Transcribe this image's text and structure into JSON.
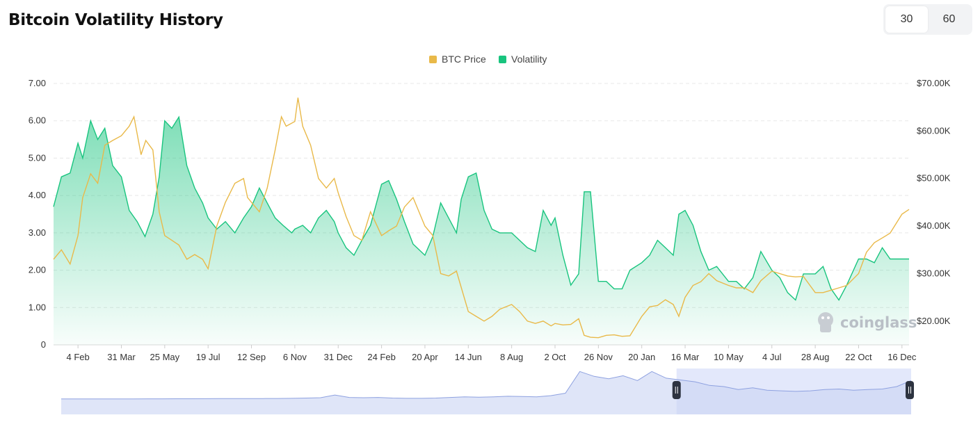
{
  "header": {
    "title": "Bitcoin Volatility History",
    "toggle_options": [
      "30",
      "60"
    ],
    "selected": "30"
  },
  "watermark": "coinglass",
  "colors": {
    "price": "#e9b949",
    "volatility": "#18c47e",
    "navigator_fill": "#e3e8fb",
    "navigator_line": "#8ea1e0",
    "handle": "#2d3340",
    "grid": "#e8e8e8"
  },
  "chart_data": {
    "type": "line",
    "legend": [
      "BTC Price",
      "Volatility"
    ],
    "legend_position": "top-center",
    "x_tick_labels": [
      "4 Feb",
      "31 Mar",
      "25 May",
      "19 Jul",
      "12 Sep",
      "6 Nov",
      "31 Dec",
      "24 Feb",
      "20 Apr",
      "14 Jun",
      "8 Aug",
      "2 Oct",
      "26 Nov",
      "20 Jan",
      "16 Mar",
      "10 May",
      "4 Jul",
      "28 Aug",
      "22 Oct",
      "16 Dec"
    ],
    "y_left_ticks": [
      "0",
      "1.00",
      "2.00",
      "3.00",
      "4.00",
      "5.00",
      "6.00",
      "7.00"
    ],
    "y_left_range": [
      0,
      7
    ],
    "y_right_ticks": [
      "$20.00K",
      "$30.00K",
      "$40.00K",
      "$50.00K",
      "$60.00K",
      "$70.00K"
    ],
    "y_right_range": [
      15000,
      70000
    ],
    "grid": "horizontal-dashed",
    "series": [
      {
        "name": "Volatility",
        "axis": "left",
        "type": "area",
        "points": [
          [
            "4 Jan",
            3.7
          ],
          [
            "14 Jan",
            4.5
          ],
          [
            "25 Jan",
            4.6
          ],
          [
            "4 Feb",
            5.4
          ],
          [
            "10 Feb",
            5.0
          ],
          [
            "20 Feb",
            6.0
          ],
          [
            "1 Mar",
            5.5
          ],
          [
            "10 Mar",
            5.8
          ],
          [
            "20 Mar",
            4.8
          ],
          [
            "31 Mar",
            4.5
          ],
          [
            "10 Apr",
            3.6
          ],
          [
            "20 Apr",
            3.3
          ],
          [
            "30 Apr",
            2.9
          ],
          [
            "10 May",
            3.5
          ],
          [
            "18 May",
            4.5
          ],
          [
            "25 May",
            6.0
          ],
          [
            "3 Jun",
            5.8
          ],
          [
            "12 Jun",
            6.1
          ],
          [
            "22 Jun",
            4.8
          ],
          [
            "2 Jul",
            4.2
          ],
          [
            "12 Jul",
            3.8
          ],
          [
            "19 Jul",
            3.4
          ],
          [
            "30 Jul",
            3.1
          ],
          [
            "10 Aug",
            3.3
          ],
          [
            "22 Aug",
            3.0
          ],
          [
            "2 Sep",
            3.4
          ],
          [
            "12 Sep",
            3.7
          ],
          [
            "22 Sep",
            4.2
          ],
          [
            "2 Oct",
            3.8
          ],
          [
            "12 Oct",
            3.4
          ],
          [
            "22 Oct",
            3.2
          ],
          [
            "2 Nov",
            3.0
          ],
          [
            "6 Nov",
            3.1
          ],
          [
            "16 Nov",
            3.2
          ],
          [
            "26 Nov",
            3.0
          ],
          [
            "6 Dec",
            3.4
          ],
          [
            "16 Dec",
            3.6
          ],
          [
            "26 Dec",
            3.3
          ],
          [
            "31 Dec",
            3.0
          ],
          [
            "10 Jan",
            2.6
          ],
          [
            "20 Jan",
            2.4
          ],
          [
            "30 Jan",
            2.8
          ],
          [
            "10 Feb",
            3.2
          ],
          [
            "24 Feb",
            4.3
          ],
          [
            "5 Mar",
            4.4
          ],
          [
            "15 Mar",
            3.9
          ],
          [
            "25 Mar",
            3.3
          ],
          [
            "5 Apr",
            2.7
          ],
          [
            "20 Apr",
            2.4
          ],
          [
            "30 Apr",
            2.9
          ],
          [
            "10 May",
            3.8
          ],
          [
            "20 May",
            3.4
          ],
          [
            "30 May",
            3.0
          ],
          [
            "5 Jun",
            3.9
          ],
          [
            "14 Jun",
            4.5
          ],
          [
            "24 Jun",
            4.6
          ],
          [
            "4 Jul",
            3.6
          ],
          [
            "14 Jul",
            3.1
          ],
          [
            "24 Jul",
            3.0
          ],
          [
            "8 Aug",
            3.0
          ],
          [
            "18 Aug",
            2.8
          ],
          [
            "28 Aug",
            2.6
          ],
          [
            "7 Sep",
            2.5
          ],
          [
            "17 Sep",
            3.6
          ],
          [
            "27 Sep",
            3.2
          ],
          [
            "2 Oct",
            3.4
          ],
          [
            "12 Oct",
            2.4
          ],
          [
            "22 Oct",
            1.6
          ],
          [
            "1 Nov",
            1.9
          ],
          [
            "8 Nov",
            4.1
          ],
          [
            "16 Nov",
            4.1
          ],
          [
            "26 Nov",
            1.7
          ],
          [
            "6 Dec",
            1.7
          ],
          [
            "16 Dec",
            1.5
          ],
          [
            "26 Dec",
            1.5
          ],
          [
            "5 Jan",
            2.0
          ],
          [
            "20 Jan",
            2.2
          ],
          [
            "30 Jan",
            2.4
          ],
          [
            "9 Feb",
            2.8
          ],
          [
            "19 Feb",
            2.6
          ],
          [
            "1 Mar",
            2.4
          ],
          [
            "8 Mar",
            3.5
          ],
          [
            "16 Mar",
            3.6
          ],
          [
            "26 Mar",
            3.2
          ],
          [
            "5 Apr",
            2.5
          ],
          [
            "15 Apr",
            2.0
          ],
          [
            "25 Apr",
            2.1
          ],
          [
            "10 May",
            1.7
          ],
          [
            "20 May",
            1.7
          ],
          [
            "30 May",
            1.5
          ],
          [
            "10 Jun",
            1.8
          ],
          [
            "20 Jun",
            2.5
          ],
          [
            "4 Jul",
            2.0
          ],
          [
            "14 Jul",
            1.8
          ],
          [
            "24 Jul",
            1.4
          ],
          [
            "3 Aug",
            1.2
          ],
          [
            "13 Aug",
            1.9
          ],
          [
            "28 Aug",
            1.9
          ],
          [
            "7 Sep",
            2.1
          ],
          [
            "17 Sep",
            1.5
          ],
          [
            "27 Sep",
            1.2
          ],
          [
            "7 Oct",
            1.6
          ],
          [
            "22 Oct",
            2.3
          ],
          [
            "1 Nov",
            2.3
          ],
          [
            "11 Nov",
            2.2
          ],
          [
            "21 Nov",
            2.6
          ],
          [
            "1 Dec",
            2.3
          ],
          [
            "16 Dec",
            2.3
          ],
          [
            "25 Dec",
            2.3
          ]
        ]
      },
      {
        "name": "BTC Price",
        "axis": "right",
        "type": "line",
        "points": [
          [
            "4 Jan",
            33000
          ],
          [
            "14 Jan",
            35000
          ],
          [
            "25 Jan",
            32000
          ],
          [
            "4 Feb",
            38000
          ],
          [
            "10 Feb",
            46000
          ],
          [
            "20 Feb",
            51000
          ],
          [
            "1 Mar",
            49000
          ],
          [
            "10 Mar",
            57000
          ],
          [
            "20 Mar",
            58000
          ],
          [
            "31 Mar",
            59000
          ],
          [
            "10 Apr",
            61000
          ],
          [
            "16 Apr",
            63000
          ],
          [
            "25 Apr",
            55000
          ],
          [
            "1 May",
            58000
          ],
          [
            "10 May",
            56000
          ],
          [
            "18 May",
            43000
          ],
          [
            "25 May",
            38000
          ],
          [
            "3 Jun",
            37000
          ],
          [
            "12 Jun",
            36000
          ],
          [
            "22 Jun",
            33000
          ],
          [
            "2 Jul",
            34000
          ],
          [
            "12 Jul",
            33000
          ],
          [
            "19 Jul",
            31000
          ],
          [
            "30 Jul",
            40000
          ],
          [
            "10 Aug",
            45000
          ],
          [
            "22 Aug",
            49000
          ],
          [
            "2 Sep",
            50000
          ],
          [
            "7 Sep",
            46000
          ],
          [
            "12 Sep",
            45000
          ],
          [
            "22 Sep",
            43000
          ],
          [
            "2 Oct",
            48000
          ],
          [
            "12 Oct",
            56000
          ],
          [
            "20 Oct",
            63000
          ],
          [
            "26 Oct",
            61000
          ],
          [
            "6 Nov",
            62000
          ],
          [
            "10 Nov",
            67000
          ],
          [
            "16 Nov",
            61000
          ],
          [
            "26 Nov",
            57000
          ],
          [
            "6 Dec",
            50000
          ],
          [
            "16 Dec",
            48000
          ],
          [
            "26 Dec",
            50000
          ],
          [
            "31 Dec",
            47000
          ],
          [
            "10 Jan",
            42000
          ],
          [
            "20 Jan",
            38000
          ],
          [
            "30 Jan",
            37000
          ],
          [
            "10 Feb",
            43000
          ],
          [
            "24 Feb",
            38000
          ],
          [
            "5 Mar",
            39000
          ],
          [
            "15 Mar",
            40000
          ],
          [
            "25 Mar",
            44000
          ],
          [
            "5 Apr",
            46000
          ],
          [
            "20 Apr",
            40000
          ],
          [
            "30 Apr",
            38000
          ],
          [
            "10 May",
            30000
          ],
          [
            "20 May",
            29500
          ],
          [
            "30 May",
            30500
          ],
          [
            "14 Jun",
            22000
          ],
          [
            "24 Jun",
            21000
          ],
          [
            "4 Jul",
            20000
          ],
          [
            "14 Jul",
            21000
          ],
          [
            "24 Jul",
            22500
          ],
          [
            "8 Aug",
            23500
          ],
          [
            "18 Aug",
            22000
          ],
          [
            "28 Aug",
            20000
          ],
          [
            "7 Sep",
            19500
          ],
          [
            "17 Sep",
            20000
          ],
          [
            "27 Sep",
            19000
          ],
          [
            "2 Oct",
            19500
          ],
          [
            "12 Oct",
            19200
          ],
          [
            "22 Oct",
            19300
          ],
          [
            "1 Nov",
            20500
          ],
          [
            "8 Nov",
            17000
          ],
          [
            "16 Nov",
            16600
          ],
          [
            "26 Nov",
            16500
          ],
          [
            "6 Dec",
            17000
          ],
          [
            "16 Dec",
            17100
          ],
          [
            "26 Dec",
            16800
          ],
          [
            "5 Jan",
            16900
          ],
          [
            "20 Jan",
            21000
          ],
          [
            "30 Jan",
            23000
          ],
          [
            "9 Feb",
            23300
          ],
          [
            "19 Feb",
            24500
          ],
          [
            "1 Mar",
            23500
          ],
          [
            "8 Mar",
            21000
          ],
          [
            "16 Mar",
            25000
          ],
          [
            "26 Mar",
            27500
          ],
          [
            "5 Apr",
            28300
          ],
          [
            "15 Apr",
            30000
          ],
          [
            "25 Apr",
            28500
          ],
          [
            "10 May",
            27500
          ],
          [
            "20 May",
            27000
          ],
          [
            "30 May",
            27000
          ],
          [
            "10 Jun",
            26000
          ],
          [
            "20 Jun",
            28500
          ],
          [
            "4 Jul",
            30500
          ],
          [
            "14 Jul",
            30000
          ],
          [
            "24 Jul",
            29500
          ],
          [
            "3 Aug",
            29300
          ],
          [
            "13 Aug",
            29400
          ],
          [
            "28 Aug",
            26000
          ],
          [
            "7 Sep",
            26000
          ],
          [
            "17 Sep",
            26500
          ],
          [
            "27 Sep",
            27000
          ],
          [
            "7 Oct",
            27500
          ],
          [
            "22 Oct",
            30000
          ],
          [
            "1 Nov",
            34500
          ],
          [
            "11 Nov",
            36500
          ],
          [
            "21 Nov",
            37500
          ],
          [
            "1 Dec",
            38500
          ],
          [
            "16 Dec",
            42500
          ],
          [
            "25 Dec",
            43500
          ]
        ]
      }
    ],
    "navigator": {
      "values": [
        0.95,
        0.95,
        0.95,
        0.96,
        0.96,
        0.96,
        0.97,
        0.97,
        0.98,
        0.98,
        0.99,
        1.0,
        1.0,
        1.01,
        1.02,
        1.03,
        1.05,
        1.1,
        1.15,
        1.6,
        1.2,
        1.15,
        1.2,
        1.1,
        1.05,
        1.05,
        1.1,
        1.2,
        1.3,
        1.25,
        1.3,
        1.4,
        1.35,
        1.3,
        1.5,
        1.9,
        5.5,
        4.7,
        4.3,
        4.8,
        4.0,
        5.5,
        4.4,
        4.1,
        3.8,
        3.2,
        3.0,
        2.5,
        2.8,
        2.4,
        2.3,
        2.2,
        2.3,
        2.5,
        2.6,
        2.4,
        2.5,
        2.6,
        3.0,
        4.0
      ],
      "selected_range": [
        "16 Mar",
        "16 Dec"
      ]
    }
  }
}
